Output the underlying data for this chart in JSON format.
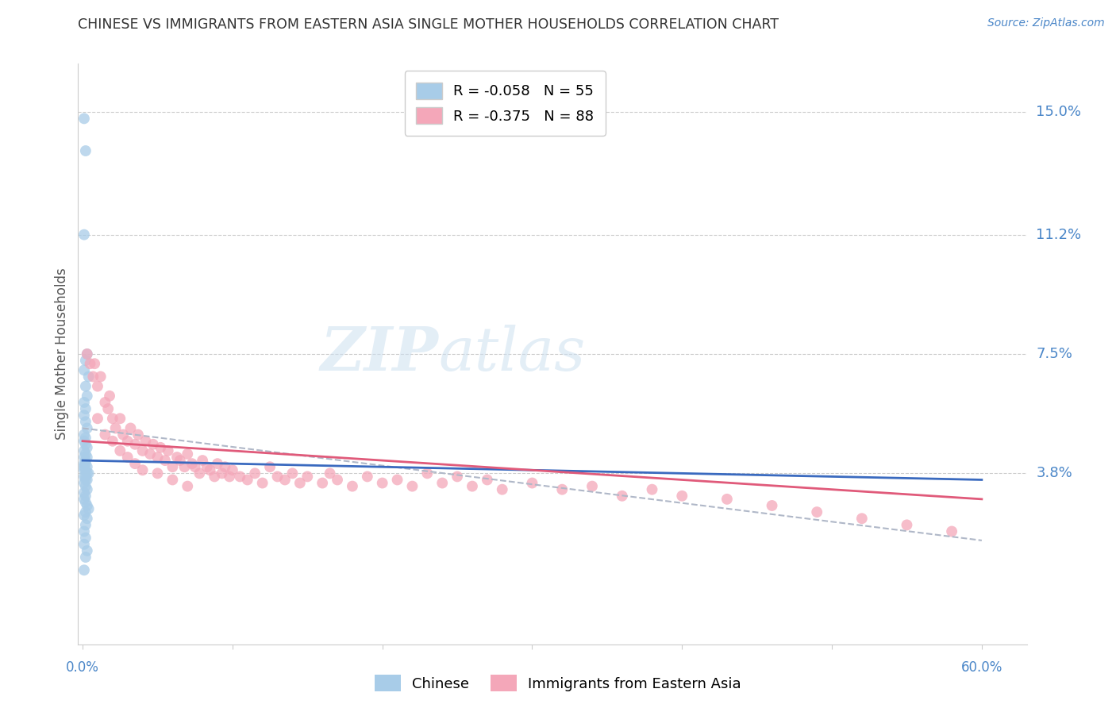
{
  "title": "CHINESE VS IMMIGRANTS FROM EASTERN ASIA SINGLE MOTHER HOUSEHOLDS CORRELATION CHART",
  "source": "Source: ZipAtlas.com",
  "ylabel": "Single Mother Households",
  "watermark_zip": "ZIP",
  "watermark_atlas": "atlas",
  "legend_r1": "R = -0.058",
  "legend_n1": "N = 55",
  "legend_r2": "R = -0.375",
  "legend_n2": "N = 88",
  "blue_color": "#a8cce8",
  "pink_color": "#f4a7b9",
  "trend_blue": "#3a6abf",
  "trend_pink": "#e05a7a",
  "trend_dash_color": "#b0b8c8",
  "title_color": "#333333",
  "label_color": "#4a86c8",
  "ytick_vals": [
    0.038,
    0.075,
    0.112,
    0.15
  ],
  "ytick_labels": [
    "3.8%",
    "7.5%",
    "11.2%",
    "15.0%"
  ],
  "xlim": [
    -0.003,
    0.63
  ],
  "ylim": [
    -0.015,
    0.165
  ],
  "chinese_x": [
    0.001,
    0.002,
    0.001,
    0.003,
    0.002,
    0.001,
    0.004,
    0.002,
    0.003,
    0.001,
    0.002,
    0.001,
    0.002,
    0.003,
    0.001,
    0.002,
    0.001,
    0.002,
    0.003,
    0.001,
    0.002,
    0.003,
    0.001,
    0.002,
    0.001,
    0.002,
    0.003,
    0.001,
    0.002,
    0.001,
    0.004,
    0.003,
    0.002,
    0.001,
    0.003,
    0.002,
    0.001,
    0.002,
    0.003,
    0.001,
    0.002,
    0.001,
    0.002,
    0.003,
    0.004,
    0.002,
    0.001,
    0.003,
    0.002,
    0.001,
    0.002,
    0.001,
    0.003,
    0.002,
    0.001
  ],
  "chinese_y": [
    0.148,
    0.138,
    0.112,
    0.075,
    0.073,
    0.07,
    0.068,
    0.065,
    0.062,
    0.06,
    0.058,
    0.056,
    0.054,
    0.052,
    0.05,
    0.049,
    0.048,
    0.047,
    0.046,
    0.045,
    0.044,
    0.043,
    0.043,
    0.042,
    0.041,
    0.041,
    0.04,
    0.04,
    0.039,
    0.039,
    0.038,
    0.038,
    0.037,
    0.037,
    0.036,
    0.036,
    0.035,
    0.034,
    0.033,
    0.032,
    0.031,
    0.03,
    0.029,
    0.028,
    0.027,
    0.026,
    0.025,
    0.024,
    0.022,
    0.02,
    0.018,
    0.016,
    0.014,
    0.012,
    0.008
  ],
  "eastern_x": [
    0.003,
    0.005,
    0.007,
    0.008,
    0.01,
    0.012,
    0.015,
    0.017,
    0.018,
    0.02,
    0.022,
    0.025,
    0.027,
    0.03,
    0.032,
    0.035,
    0.037,
    0.04,
    0.042,
    0.045,
    0.047,
    0.05,
    0.052,
    0.055,
    0.057,
    0.06,
    0.063,
    0.065,
    0.068,
    0.07,
    0.073,
    0.075,
    0.078,
    0.08,
    0.083,
    0.085,
    0.088,
    0.09,
    0.093,
    0.095,
    0.098,
    0.1,
    0.105,
    0.11,
    0.115,
    0.12,
    0.125,
    0.13,
    0.135,
    0.14,
    0.145,
    0.15,
    0.16,
    0.165,
    0.17,
    0.18,
    0.19,
    0.2,
    0.21,
    0.22,
    0.23,
    0.24,
    0.25,
    0.26,
    0.27,
    0.28,
    0.3,
    0.32,
    0.34,
    0.36,
    0.38,
    0.4,
    0.43,
    0.46,
    0.49,
    0.52,
    0.55,
    0.58,
    0.01,
    0.015,
    0.02,
    0.025,
    0.03,
    0.035,
    0.04,
    0.05,
    0.06,
    0.07
  ],
  "eastern_y": [
    0.075,
    0.072,
    0.068,
    0.072,
    0.065,
    0.068,
    0.06,
    0.058,
    0.062,
    0.055,
    0.052,
    0.055,
    0.05,
    0.048,
    0.052,
    0.047,
    0.05,
    0.045,
    0.048,
    0.044,
    0.047,
    0.043,
    0.046,
    0.042,
    0.045,
    0.04,
    0.043,
    0.042,
    0.04,
    0.044,
    0.041,
    0.04,
    0.038,
    0.042,
    0.04,
    0.039,
    0.037,
    0.041,
    0.038,
    0.04,
    0.037,
    0.039,
    0.037,
    0.036,
    0.038,
    0.035,
    0.04,
    0.037,
    0.036,
    0.038,
    0.035,
    0.037,
    0.035,
    0.038,
    0.036,
    0.034,
    0.037,
    0.035,
    0.036,
    0.034,
    0.038,
    0.035,
    0.037,
    0.034,
    0.036,
    0.033,
    0.035,
    0.033,
    0.034,
    0.031,
    0.033,
    0.031,
    0.03,
    0.028,
    0.026,
    0.024,
    0.022,
    0.02,
    0.055,
    0.05,
    0.048,
    0.045,
    0.043,
    0.041,
    0.039,
    0.038,
    0.036,
    0.034
  ]
}
